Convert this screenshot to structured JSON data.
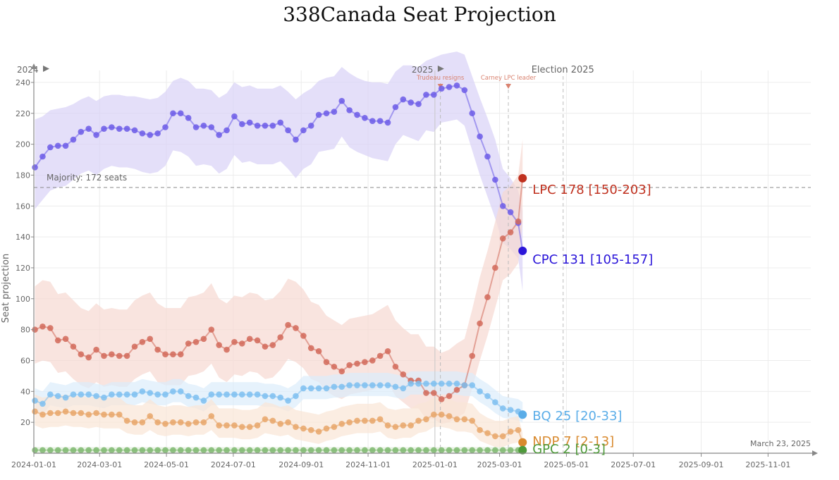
{
  "chart_data": {
    "type": "line",
    "title": "338Canada Seat Projection",
    "ylabel": "Seat projection",
    "xlim": [
      "2024-01-01",
      "2025-12-10"
    ],
    "ylim": [
      0,
      250
    ],
    "yticks": [
      20,
      40,
      60,
      80,
      100,
      120,
      140,
      160,
      180,
      200,
      220,
      240
    ],
    "xticks": [
      "2024-01-01",
      "2024-03-01",
      "2024-05-01",
      "2024-07-01",
      "2024-09-01",
      "2024-11-01",
      "2025-01-01",
      "2025-03-01",
      "2025-05-01",
      "2025-07-01",
      "2025-09-01",
      "2025-11-01"
    ],
    "grid": true,
    "majority": {
      "label": "Majority: 172 seats",
      "value": 172
    },
    "annotations": {
      "year_2024": "2024",
      "year_2025": "2025",
      "election": "Election 2025",
      "event1": "Trudeau resigns",
      "event2": "Carney LPC leader",
      "date_stamp": "March 23, 2025"
    },
    "event_dates": {
      "year_2025": "2025-01-01",
      "event1": "2025-01-06",
      "event2": "2025-03-09",
      "election": "2025-04-28"
    },
    "x": [
      "2024-01-02",
      "2024-01-09",
      "2024-01-16",
      "2024-01-23",
      "2024-01-30",
      "2024-02-06",
      "2024-02-13",
      "2024-02-20",
      "2024-02-27",
      "2024-03-05",
      "2024-03-12",
      "2024-03-19",
      "2024-03-26",
      "2024-04-02",
      "2024-04-09",
      "2024-04-16",
      "2024-04-23",
      "2024-04-30",
      "2024-05-07",
      "2024-05-14",
      "2024-05-21",
      "2024-05-28",
      "2024-06-04",
      "2024-06-11",
      "2024-06-18",
      "2024-06-25",
      "2024-07-02",
      "2024-07-09",
      "2024-07-16",
      "2024-07-23",
      "2024-07-30",
      "2024-08-06",
      "2024-08-13",
      "2024-08-20",
      "2024-08-27",
      "2024-09-03",
      "2024-09-10",
      "2024-09-17",
      "2024-09-24",
      "2024-10-01",
      "2024-10-08",
      "2024-10-15",
      "2024-10-22",
      "2024-10-29",
      "2024-11-05",
      "2024-11-12",
      "2024-11-19",
      "2024-11-26",
      "2024-12-03",
      "2024-12-10",
      "2024-12-17",
      "2024-12-24",
      "2024-12-31",
      "2025-01-07",
      "2025-01-14",
      "2025-01-21",
      "2025-01-28",
      "2025-02-04",
      "2025-02-11",
      "2025-02-18",
      "2025-02-25",
      "2025-03-04",
      "2025-03-11",
      "2025-03-18",
      "2025-03-22"
    ],
    "series": [
      {
        "name": "CPC",
        "color": "#6c5ce7",
        "band_color": "#d9d2f7",
        "end_color": "#2b16d9",
        "values": [
          185,
          192,
          198,
          199,
          199,
          203,
          208,
          210,
          206,
          210,
          211,
          210,
          210,
          209,
          207,
          206,
          207,
          211,
          220,
          220,
          217,
          211,
          212,
          211,
          206,
          209,
          218,
          213,
          214,
          212,
          212,
          212,
          214,
          209,
          203,
          209,
          212,
          219,
          220,
          221,
          228,
          222,
          219,
          217,
          215,
          215,
          214,
          224,
          229,
          227,
          226,
          232,
          232,
          236,
          237,
          238,
          235,
          220,
          205,
          192,
          177,
          160,
          156,
          149,
          131
        ],
        "upper": [
          216,
          218,
          222,
          223,
          224,
          226,
          229,
          231,
          228,
          231,
          232,
          232,
          231,
          231,
          230,
          229,
          230,
          234,
          241,
          243,
          241,
          236,
          236,
          235,
          230,
          233,
          240,
          237,
          238,
          236,
          236,
          236,
          238,
          234,
          229,
          233,
          236,
          241,
          243,
          244,
          250,
          246,
          243,
          241,
          240,
          240,
          239,
          247,
          251,
          251,
          250,
          254,
          256,
          258,
          259,
          260,
          258,
          244,
          230,
          217,
          203,
          184,
          178,
          170,
          157
        ],
        "lower": [
          158,
          164,
          170,
          172,
          173,
          177,
          181,
          183,
          180,
          184,
          186,
          185,
          185,
          184,
          182,
          181,
          182,
          186,
          196,
          195,
          192,
          186,
          187,
          186,
          181,
          184,
          193,
          188,
          189,
          187,
          187,
          187,
          189,
          184,
          178,
          184,
          187,
          195,
          196,
          197,
          205,
          198,
          195,
          193,
          191,
          190,
          189,
          200,
          206,
          204,
          202,
          209,
          208,
          214,
          215,
          216,
          212,
          196,
          180,
          166,
          152,
          136,
          132,
          126,
          105
        ],
        "label": "CPC 131 [105-157]",
        "end_value": 131
      },
      {
        "name": "LPC",
        "color": "#d26a5a",
        "band_color": "#f6d9d1",
        "end_color": "#c0311f",
        "values": [
          80,
          82,
          81,
          73,
          74,
          69,
          64,
          62,
          67,
          63,
          64,
          63,
          63,
          69,
          72,
          74,
          67,
          64,
          64,
          64,
          71,
          72,
          74,
          80,
          70,
          67,
          72,
          71,
          74,
          73,
          69,
          70,
          75,
          83,
          81,
          76,
          68,
          66,
          59,
          56,
          53,
          57,
          58,
          59,
          60,
          63,
          66,
          56,
          51,
          47,
          47,
          39,
          39,
          35,
          37,
          41,
          44,
          63,
          84,
          101,
          120,
          139,
          143,
          150,
          178
        ],
        "upper": [
          108,
          112,
          111,
          103,
          104,
          99,
          94,
          92,
          97,
          93,
          94,
          93,
          93,
          99,
          102,
          104,
          97,
          94,
          94,
          94,
          101,
          102,
          104,
          110,
          100,
          97,
          102,
          101,
          104,
          103,
          99,
          100,
          105,
          113,
          111,
          106,
          98,
          96,
          89,
          86,
          83,
          87,
          88,
          89,
          90,
          93,
          96,
          86,
          81,
          77,
          77,
          69,
          69,
          65,
          67,
          71,
          74,
          93,
          114,
          131,
          150,
          169,
          173,
          180,
          203
        ],
        "lower": [
          58,
          60,
          59,
          52,
          53,
          48,
          44,
          42,
          46,
          43,
          44,
          43,
          43,
          48,
          51,
          53,
          46,
          44,
          44,
          44,
          50,
          51,
          53,
          58,
          49,
          46,
          51,
          50,
          53,
          52,
          48,
          49,
          54,
          61,
          59,
          55,
          48,
          46,
          40,
          37,
          35,
          38,
          39,
          40,
          41,
          43,
          46,
          37,
          33,
          29,
          29,
          22,
          22,
          19,
          20,
          23,
          26,
          42,
          60,
          76,
          94,
          112,
          116,
          123,
          150
        ],
        "label": "LPC 178 [150-203]",
        "end_value": 178
      },
      {
        "name": "BQ",
        "color": "#7ec0f0",
        "band_color": "#dcedfb",
        "end_color": "#5aade8",
        "values": [
          34,
          32,
          38,
          37,
          36,
          38,
          38,
          38,
          37,
          36,
          38,
          38,
          38,
          38,
          40,
          39,
          38,
          38,
          40,
          40,
          37,
          36,
          34,
          38,
          38,
          38,
          38,
          38,
          38,
          38,
          37,
          37,
          36,
          34,
          37,
          42,
          42,
          42,
          42,
          43,
          43,
          44,
          44,
          44,
          44,
          44,
          44,
          43,
          42,
          45,
          45,
          45,
          45,
          45,
          45,
          45,
          44,
          44,
          40,
          37,
          33,
          29,
          28,
          27,
          25
        ],
        "upper": [
          42,
          40,
          46,
          45,
          44,
          46,
          46,
          46,
          45,
          44,
          46,
          46,
          46,
          46,
          48,
          47,
          46,
          46,
          48,
          48,
          45,
          44,
          42,
          46,
          46,
          46,
          46,
          46,
          46,
          46,
          45,
          45,
          44,
          42,
          45,
          50,
          50,
          50,
          50,
          51,
          51,
          52,
          52,
          52,
          52,
          52,
          52,
          51,
          50,
          53,
          53,
          53,
          53,
          53,
          53,
          53,
          52,
          52,
          48,
          45,
          41,
          37,
          36,
          35,
          33
        ],
        "lower": [
          27,
          25,
          31,
          30,
          29,
          31,
          31,
          31,
          30,
          29,
          31,
          31,
          31,
          31,
          33,
          32,
          31,
          31,
          33,
          33,
          30,
          29,
          27,
          31,
          31,
          31,
          31,
          31,
          31,
          31,
          30,
          30,
          29,
          27,
          30,
          35,
          35,
          35,
          35,
          36,
          36,
          37,
          37,
          37,
          37,
          37,
          37,
          36,
          35,
          38,
          38,
          38,
          38,
          38,
          38,
          38,
          37,
          37,
          33,
          30,
          26,
          23,
          22,
          21,
          20
        ],
        "label": "BQ 25 [20-33]",
        "end_value": 25
      },
      {
        "name": "NDP",
        "color": "#e8a66a",
        "band_color": "#f9e6d5",
        "end_color": "#d98a2f",
        "values": [
          27,
          25,
          26,
          26,
          27,
          26,
          26,
          25,
          26,
          25,
          25,
          25,
          21,
          20,
          20,
          24,
          20,
          19,
          20,
          20,
          19,
          20,
          20,
          24,
          18,
          18,
          18,
          17,
          17,
          18,
          22,
          21,
          19,
          20,
          17,
          16,
          15,
          14,
          16,
          17,
          19,
          20,
          21,
          21,
          21,
          22,
          18,
          17,
          18,
          18,
          21,
          22,
          25,
          25,
          24,
          22,
          22,
          21,
          15,
          13,
          11,
          11,
          14,
          15,
          7
        ],
        "upper": [
          38,
          36,
          37,
          37,
          38,
          37,
          37,
          36,
          37,
          36,
          36,
          36,
          32,
          31,
          31,
          35,
          31,
          30,
          31,
          31,
          30,
          31,
          31,
          35,
          29,
          29,
          29,
          28,
          28,
          29,
          33,
          32,
          30,
          31,
          28,
          27,
          26,
          25,
          27,
          28,
          30,
          31,
          32,
          32,
          32,
          33,
          29,
          28,
          29,
          29,
          32,
          33,
          36,
          36,
          35,
          33,
          33,
          32,
          26,
          23,
          21,
          21,
          23,
          24,
          13
        ],
        "lower": [
          18,
          16,
          17,
          17,
          18,
          17,
          17,
          16,
          17,
          16,
          16,
          16,
          13,
          12,
          12,
          15,
          12,
          11,
          12,
          12,
          11,
          12,
          12,
          15,
          10,
          10,
          10,
          9,
          9,
          10,
          13,
          12,
          11,
          12,
          9,
          8,
          7,
          6,
          8,
          9,
          11,
          12,
          13,
          13,
          13,
          14,
          10,
          9,
          10,
          10,
          13,
          14,
          17,
          17,
          16,
          14,
          14,
          13,
          8,
          6,
          4,
          4,
          6,
          7,
          2
        ],
        "label": "NDP 7 [2-13]",
        "end_value": 7
      },
      {
        "name": "GPC",
        "color": "#7fb870",
        "band_color": "#e1f0dc",
        "end_color": "#4e9a3a",
        "values": [
          2,
          2,
          2,
          2,
          2,
          2,
          2,
          2,
          2,
          2,
          2,
          2,
          2,
          2,
          2,
          2,
          2,
          2,
          2,
          2,
          2,
          2,
          2,
          2,
          2,
          2,
          2,
          2,
          2,
          2,
          2,
          2,
          2,
          2,
          2,
          2,
          2,
          2,
          2,
          2,
          2,
          2,
          2,
          2,
          2,
          2,
          2,
          2,
          2,
          2,
          2,
          2,
          2,
          2,
          2,
          2,
          2,
          2,
          2,
          2,
          2,
          2,
          2,
          2,
          2
        ],
        "upper": [
          4,
          4,
          4,
          4,
          4,
          4,
          4,
          4,
          4,
          4,
          4,
          4,
          4,
          4,
          4,
          4,
          4,
          4,
          4,
          4,
          4,
          4,
          4,
          4,
          4,
          4,
          4,
          4,
          4,
          4,
          4,
          4,
          4,
          4,
          4,
          4,
          4,
          4,
          4,
          4,
          4,
          4,
          4,
          4,
          4,
          4,
          4,
          4,
          4,
          4,
          4,
          4,
          4,
          4,
          4,
          4,
          4,
          4,
          4,
          4,
          4,
          4,
          4,
          4,
          3
        ],
        "lower": [
          0,
          0,
          0,
          0,
          0,
          0,
          0,
          0,
          0,
          0,
          0,
          0,
          0,
          0,
          0,
          0,
          0,
          0,
          0,
          0,
          0,
          0,
          0,
          0,
          0,
          0,
          0,
          0,
          0,
          0,
          0,
          0,
          0,
          0,
          0,
          0,
          0,
          0,
          0,
          0,
          0,
          0,
          0,
          0,
          0,
          0,
          0,
          0,
          0,
          0,
          0,
          0,
          0,
          0,
          0,
          0,
          0,
          0,
          0,
          0,
          0,
          0,
          0,
          0,
          0
        ],
        "label": "GPC 2 [0-3]",
        "end_value": 2
      }
    ]
  }
}
